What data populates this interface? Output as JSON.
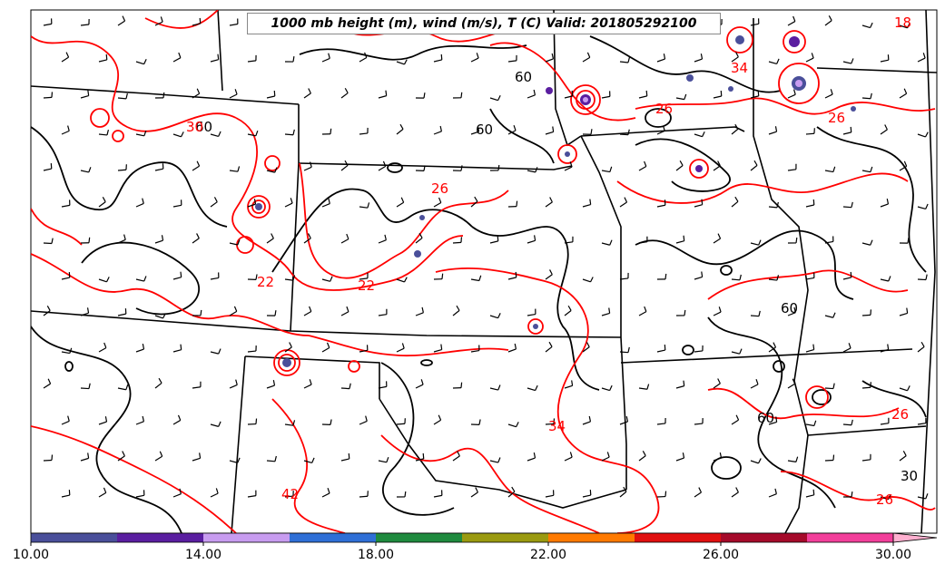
{
  "title": "1000 mb height (m), wind (m/s), T (C) Valid: 201805292100",
  "colorbar": {
    "ticks": [
      "10.00",
      "14.00",
      "18.00",
      "22.00",
      "26.00",
      "30.00"
    ],
    "min": 10,
    "max": 30,
    "step": 2,
    "colors": [
      "#4a4f9a",
      "#5a1ea0",
      "#c89cf0",
      "#2f6fd6",
      "#1f8a3e",
      "#9a9a10",
      "#ff7a00",
      "#e01010",
      "#a50a2a",
      "#f23f9a",
      "#ffb0d0"
    ]
  },
  "contour_labels": {
    "height": [
      "60",
      "60",
      "60",
      "60",
      "60",
      "30"
    ],
    "temperature": [
      "18",
      "30",
      "34",
      "26",
      "26",
      "26",
      "22",
      "22",
      "34",
      "42",
      "26",
      "26"
    ]
  },
  "colors": {
    "temperature_contour": "#ff0000",
    "height_contour": "#000000",
    "state_border": "#000000"
  }
}
